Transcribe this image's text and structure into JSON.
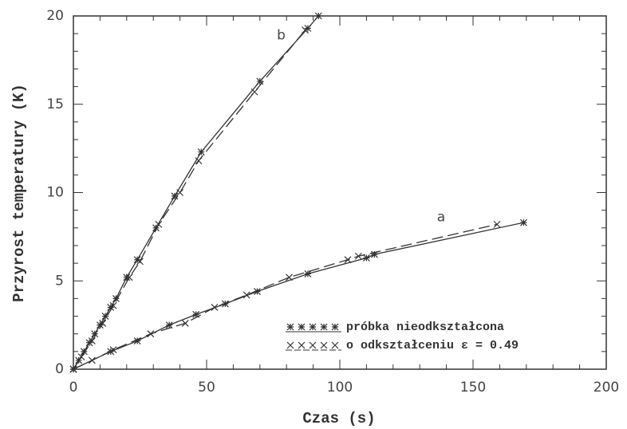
{
  "chart_data": {
    "type": "scatter",
    "xlabel": "Czas   (s)",
    "ylabel": "Przyrost  temperatury   (K)",
    "xlim": [
      0,
      200
    ],
    "ylim": [
      0,
      20
    ],
    "xticks": [
      0,
      50,
      100,
      150,
      200
    ],
    "yticks": [
      0,
      5,
      10,
      15,
      20
    ],
    "xminorticks": [
      10,
      20,
      30,
      40,
      60,
      70,
      80,
      90,
      110,
      120,
      130,
      140,
      160,
      170,
      180,
      190
    ],
    "yminorticks": [
      1,
      2,
      3,
      4,
      6,
      7,
      8,
      9,
      11,
      12,
      13,
      14,
      16,
      17,
      18,
      19
    ],
    "color": "#333333",
    "series": [
      {
        "name": "próbka nieodkształcona",
        "marker": "star",
        "dashed": false,
        "curves": [
          {
            "x": [
              0,
              14,
              24,
              36,
              46,
              57,
              69,
              88,
              110,
              113,
              169
            ],
            "values": [
              0,
              1.0,
              1.6,
              2.5,
              3.1,
              3.7,
              4.4,
              5.4,
              6.3,
              6.5,
              8.3
            ]
          },
          {
            "x": [
              0,
              2,
              4,
              6,
              8,
              10,
              12,
              14,
              16,
              20,
              24,
              31,
              38,
              48,
              70,
              88,
              92
            ],
            "values": [
              0,
              0.5,
              1.0,
              1.5,
              2.0,
              2.5,
              3.0,
              3.5,
              4.0,
              5.2,
              6.2,
              8.0,
              9.8,
              12.3,
              16.3,
              19.3,
              20
            ]
          }
        ]
      },
      {
        "name": "o odkształceniu ε = 0.49",
        "marker": "x",
        "dashed": true,
        "curves": [
          {
            "x": [
              0,
              7,
              15,
              29,
              42,
              53,
              65,
              81,
              103,
              107,
              159
            ],
            "values": [
              0,
              0.5,
              1.1,
              2.0,
              2.6,
              3.5,
              4.2,
              5.2,
              6.2,
              6.4,
              8.2
            ]
          },
          {
            "x": [
              0,
              3,
              7,
              11,
              15,
              21,
              25,
              32,
              40,
              47,
              68,
              87
            ],
            "values": [
              0,
              0.7,
              1.6,
              2.6,
              3.6,
              5.2,
              6.1,
              8.2,
              10.0,
              11.8,
              15.7,
              19.2
            ]
          }
        ]
      }
    ],
    "annotations": [
      {
        "text": "a",
        "x": 138,
        "y": 8.6
      },
      {
        "text": "b",
        "x": 78,
        "y": 18.9
      }
    ]
  }
}
